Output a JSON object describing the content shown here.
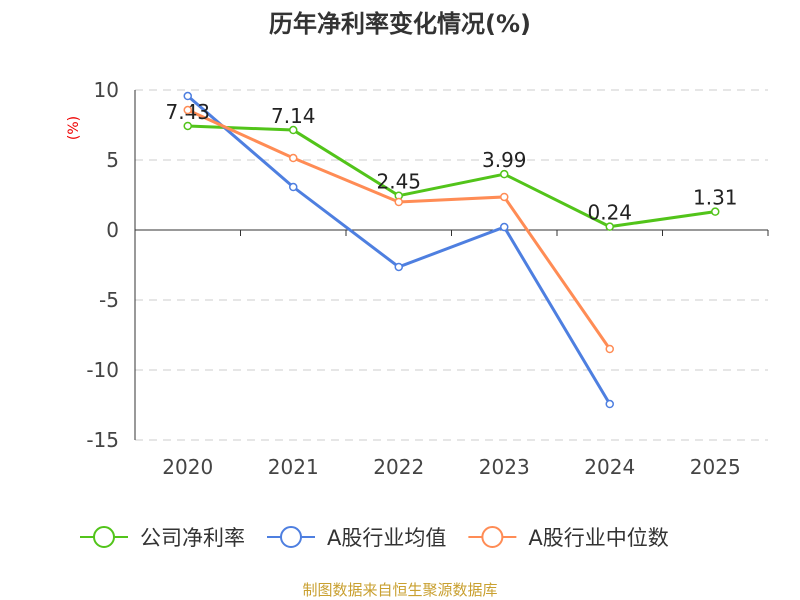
{
  "chart_data": {
    "type": "line",
    "title": "历年净利率变化情况(%)",
    "ylabel": "(%)",
    "xlabel": "",
    "categories": [
      "2020",
      "2021",
      "2022",
      "2023",
      "2024",
      "2025"
    ],
    "ylim": [
      -15,
      10
    ],
    "yticks": [
      10,
      5,
      0,
      -5,
      -10,
      -15
    ],
    "grid": true,
    "legend_position": "bottom",
    "series": [
      {
        "name": "公司净利率",
        "color": "#52c41a",
        "values": [
          7.43,
          7.14,
          2.45,
          3.99,
          0.24,
          1.31
        ],
        "show_labels": true
      },
      {
        "name": "A股行业均值",
        "color": "#4e7fe0",
        "values": [
          9.57,
          3.07,
          -2.64,
          0.21,
          -12.43,
          null
        ],
        "show_labels": false
      },
      {
        "name": "A股行业中位数",
        "color": "#ff8c55",
        "values": [
          8.57,
          5.14,
          2.0,
          2.36,
          -8.5,
          null
        ],
        "show_labels": false
      }
    ]
  },
  "footer": "制图数据来自恒生聚源数据库"
}
